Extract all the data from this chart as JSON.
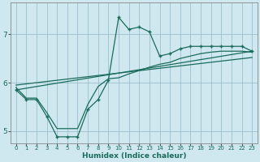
{
  "xlabel": "Humidex (Indice chaleur)",
  "background_color": "#cfe8f0",
  "grid_color": "#9bbfcf",
  "line_color": "#1a6b5a",
  "xlim": [
    -0.5,
    23.5
  ],
  "ylim": [
    4.75,
    7.65
  ],
  "xticks": [
    0,
    1,
    2,
    3,
    4,
    5,
    6,
    7,
    8,
    9,
    10,
    11,
    12,
    13,
    14,
    15,
    16,
    17,
    18,
    19,
    20,
    21,
    22,
    23
  ],
  "yticks": [
    5,
    6,
    7
  ],
  "line1_x": [
    0,
    1,
    2,
    3,
    4,
    5,
    6,
    7,
    8,
    9,
    10,
    11,
    12,
    13,
    14,
    15,
    16,
    17,
    18,
    19,
    20,
    21,
    22,
    23
  ],
  "line1_y": [
    5.85,
    5.65,
    5.65,
    5.3,
    4.88,
    4.88,
    4.88,
    5.45,
    5.65,
    6.05,
    7.35,
    7.1,
    7.15,
    7.05,
    6.55,
    6.6,
    6.7,
    6.75,
    6.75,
    6.75,
    6.75,
    6.75,
    6.75,
    6.65
  ],
  "line2_x": [
    0,
    1,
    2,
    3,
    4,
    5,
    6,
    7,
    8,
    9,
    10,
    11,
    12,
    13,
    14,
    15,
    16,
    17,
    18,
    19,
    20,
    21,
    22,
    23
  ],
  "line2_y": [
    5.9,
    5.68,
    5.68,
    5.38,
    5.05,
    5.05,
    5.05,
    5.55,
    5.92,
    6.08,
    6.1,
    6.18,
    6.25,
    6.32,
    6.38,
    6.42,
    6.5,
    6.55,
    6.6,
    6.63,
    6.65,
    6.65,
    6.65,
    6.63
  ],
  "line3_x": [
    0,
    23
  ],
  "line3_y": [
    5.85,
    6.65
  ],
  "line4_x": [
    0,
    23
  ],
  "line4_y": [
    5.95,
    6.52
  ]
}
